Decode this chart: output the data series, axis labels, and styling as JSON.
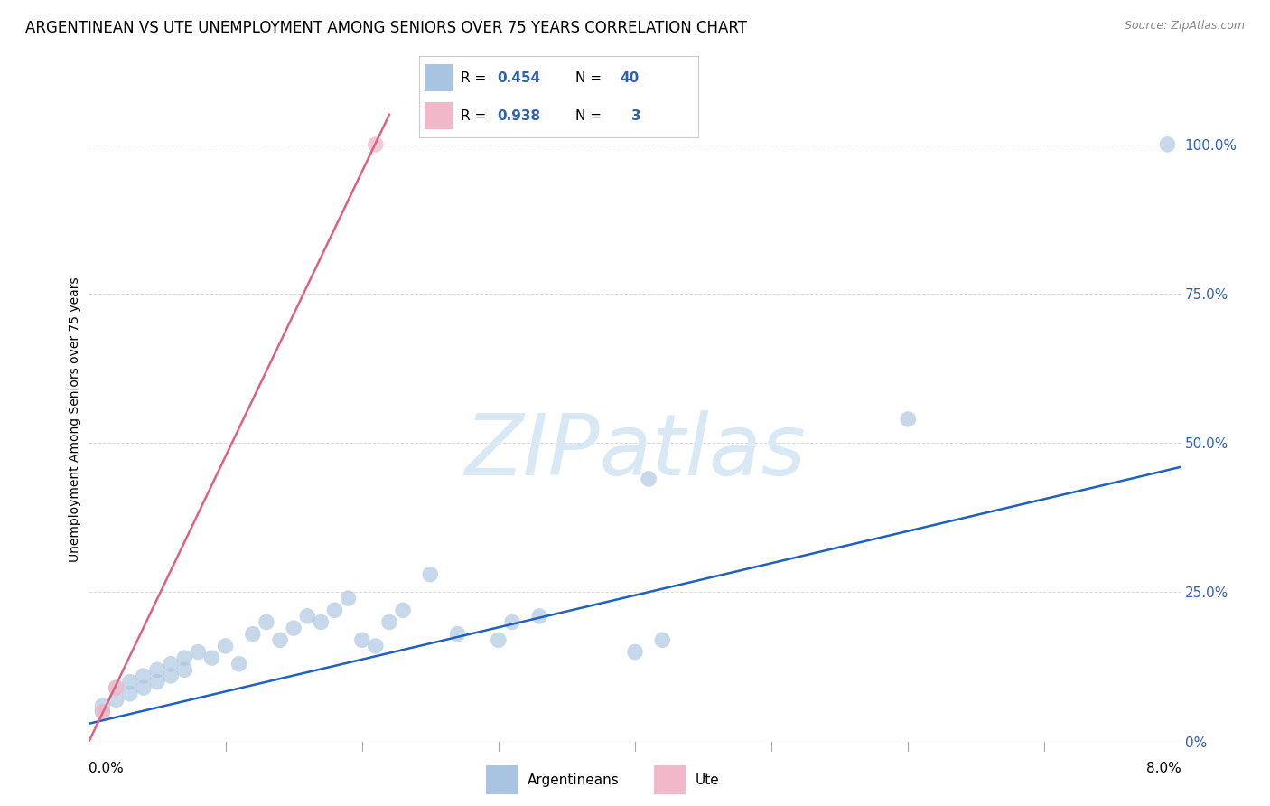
{
  "title": "ARGENTINEAN VS UTE UNEMPLOYMENT AMONG SENIORS OVER 75 YEARS CORRELATION CHART",
  "source": "Source: ZipAtlas.com",
  "ylabel": "Unemployment Among Seniors over 75 years",
  "blue_R": 0.454,
  "blue_N": 40,
  "pink_R": 0.938,
  "pink_N": 3,
  "blue_scatter_x": [
    0.001,
    0.001,
    0.002,
    0.002,
    0.003,
    0.003,
    0.004,
    0.004,
    0.005,
    0.005,
    0.006,
    0.006,
    0.007,
    0.007,
    0.008,
    0.009,
    0.01,
    0.011,
    0.012,
    0.013,
    0.014,
    0.015,
    0.016,
    0.017,
    0.018,
    0.019,
    0.02,
    0.021,
    0.022,
    0.023,
    0.025,
    0.027,
    0.03,
    0.031,
    0.033,
    0.04,
    0.041,
    0.042,
    0.06,
    0.079
  ],
  "blue_scatter_y": [
    5,
    6,
    7,
    9,
    8,
    10,
    11,
    9,
    10,
    12,
    11,
    13,
    12,
    14,
    15,
    14,
    16,
    13,
    18,
    20,
    17,
    19,
    21,
    20,
    22,
    24,
    17,
    16,
    20,
    22,
    28,
    18,
    17,
    20,
    21,
    15,
    44,
    17,
    54,
    100
  ],
  "pink_scatter_x": [
    0.001,
    0.002,
    0.021
  ],
  "pink_scatter_y": [
    5,
    9,
    100
  ],
  "blue_line_x": [
    0.0,
    0.08
  ],
  "blue_line_y": [
    3,
    46
  ],
  "pink_line_x": [
    0.0,
    0.022
  ],
  "pink_line_y": [
    0,
    105
  ],
  "bg_color": "#ffffff",
  "grid_color": "#d8d8d8",
  "blue_dot_color": "#a8c4e0",
  "pink_dot_color": "#f0b8c8",
  "blue_line_color": "#2060c0",
  "pink_line_color": "#e06080",
  "ytick_vals": [
    0,
    25,
    50,
    75,
    100
  ],
  "ytick_right_labels": [
    "0%",
    "25.0%",
    "50.0%",
    "75.0%",
    "100.0%"
  ],
  "xlim": [
    0,
    0.08
  ],
  "ylim": [
    0,
    108
  ],
  "title_fontsize": 12,
  "source_fontsize": 9,
  "axis_label_fontsize": 10,
  "right_tick_color": "#3060b0",
  "watermark_text": "ZIPatlas",
  "watermark_color": "#d8e8f5"
}
